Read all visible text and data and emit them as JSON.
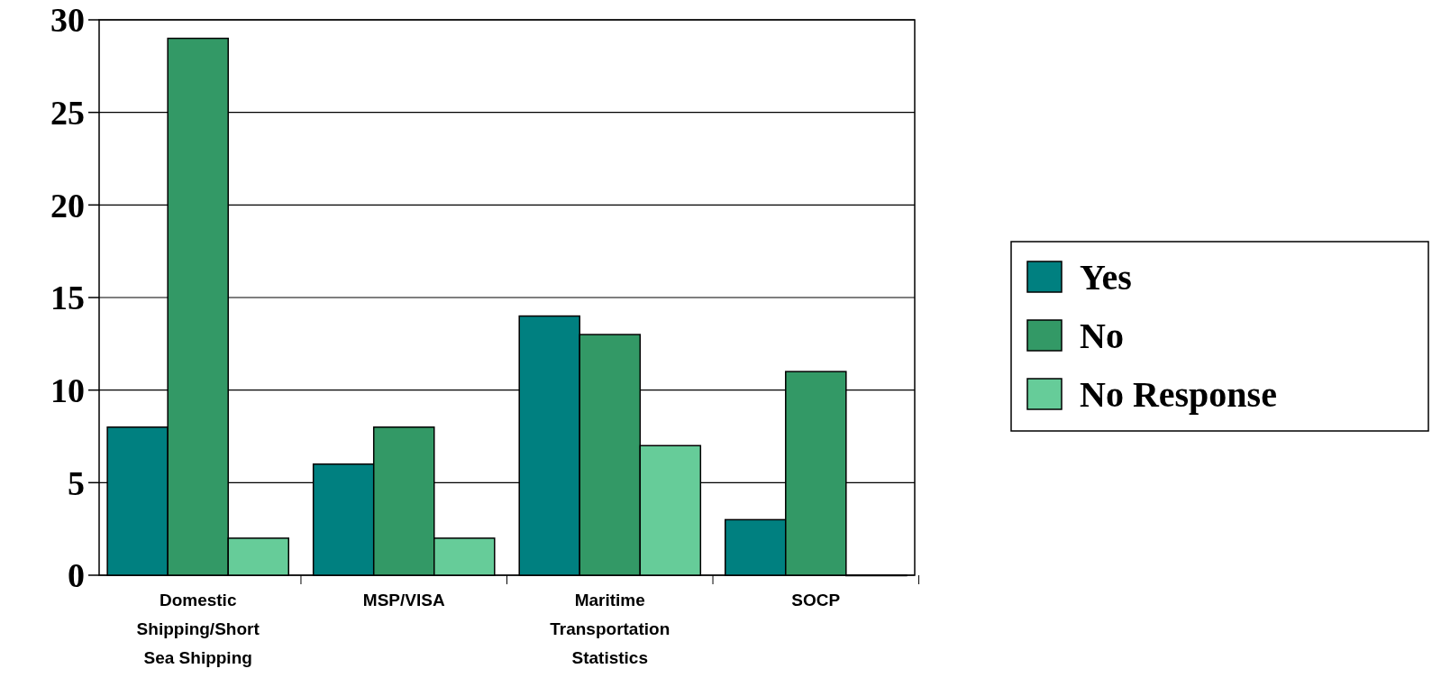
{
  "chart_data": {
    "type": "bar",
    "categories": [
      "Domestic Shipping/Short Sea Shipping",
      "MSP/VISA",
      "Maritime Transportation Statistics",
      "SOCP"
    ],
    "series": [
      {
        "name": "Yes",
        "color": "#008080",
        "values": [
          8,
          6,
          14,
          3
        ]
      },
      {
        "name": "No",
        "color": "#339966",
        "values": [
          29,
          8,
          13,
          11
        ]
      },
      {
        "name": "No Response",
        "color": "#66cc99",
        "values": [
          2,
          2,
          7,
          0
        ]
      }
    ],
    "ylim": [
      0,
      30
    ],
    "yticks": [
      0,
      5,
      10,
      15,
      20,
      25,
      30
    ],
    "grid": "y",
    "legend": "right"
  }
}
